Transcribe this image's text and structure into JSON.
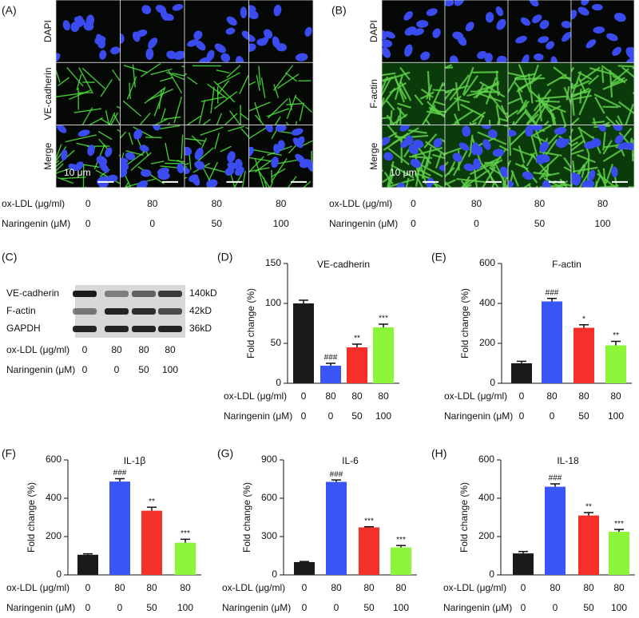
{
  "panels": {
    "A": {
      "label": "(A)",
      "rows": [
        "DAPI",
        "VE-cadherin",
        "Merge"
      ],
      "scale_bar": "10 μm",
      "conditions": [
        {
          "label": "ox-LDL (μg/ml)",
          "values": [
            0,
            80,
            80,
            80
          ]
        },
        {
          "label": "Naringenin (μM)",
          "values": [
            0,
            0,
            50,
            100
          ]
        }
      ]
    },
    "B": {
      "label": "(B)",
      "rows": [
        "DAPI",
        "F-actin",
        "Merge"
      ],
      "scale_bar": "10 μm",
      "conditions": [
        {
          "label": "ox-LDL (μg/ml)",
          "values": [
            0,
            80,
            80,
            80
          ]
        },
        {
          "label": "Naringenin (μM)",
          "values": [
            0,
            0,
            50,
            100
          ]
        }
      ]
    },
    "C": {
      "label": "(C)",
      "bands": [
        {
          "name": "VE-cadherin",
          "size": "140kD"
        },
        {
          "name": "F-actin",
          "size": "42kD"
        },
        {
          "name": "GAPDH",
          "size": "36kD"
        }
      ],
      "conditions": [
        {
          "label": "ox-LDL (μg/ml)",
          "values": [
            0,
            80,
            80,
            80
          ]
        },
        {
          "label": "Naringenin (μM)",
          "values": [
            0,
            0,
            50,
            100
          ]
        }
      ]
    }
  },
  "chart_data": [
    {
      "type": "bar",
      "panel_label": "(D)",
      "title": "VE-cadherin",
      "y_label": "Fold change (%)",
      "ylim": [
        0,
        150
      ],
      "yticks": [
        0,
        50,
        100,
        150
      ],
      "values": [
        100,
        22,
        45,
        70
      ],
      "errors": [
        4,
        3,
        4,
        4
      ],
      "colors": [
        "#1a1a1a",
        "#3a55f5",
        "#f5302a",
        "#8cf53a"
      ],
      "annotations": [
        null,
        "###",
        "**",
        "***"
      ],
      "conditions": [
        {
          "label": "ox-LDL (μg/ml)",
          "values": [
            0,
            80,
            80,
            80
          ]
        },
        {
          "label": "Naringenin (μM)",
          "values": [
            0,
            0,
            50,
            100
          ]
        }
      ]
    },
    {
      "type": "bar",
      "panel_label": "(E)",
      "title": "F-actin",
      "y_label": "Fold change (%)",
      "ylim": [
        0,
        600
      ],
      "yticks": [
        0,
        200,
        400,
        600
      ],
      "values": [
        100,
        410,
        278,
        190
      ],
      "errors": [
        10,
        15,
        15,
        20
      ],
      "colors": [
        "#1a1a1a",
        "#3a55f5",
        "#f5302a",
        "#8cf53a"
      ],
      "annotations": [
        null,
        "###",
        "*",
        "**"
      ],
      "conditions": [
        {
          "label": "ox-LDL (μg/ml)",
          "values": [
            0,
            80,
            80,
            80
          ]
        },
        {
          "label": "Naringenin (μM)",
          "values": [
            0,
            0,
            50,
            100
          ]
        }
      ]
    },
    {
      "type": "bar",
      "panel_label": "(F)",
      "title": "IL-1β",
      "y_label": "Fold change (%)",
      "ylim": [
        0,
        600
      ],
      "yticks": [
        0,
        200,
        400,
        600
      ],
      "values": [
        105,
        487,
        335,
        168
      ],
      "errors": [
        5,
        15,
        18,
        18
      ],
      "colors": [
        "#1a1a1a",
        "#3a55f5",
        "#f5302a",
        "#8cf53a"
      ],
      "annotations": [
        null,
        "###",
        "**",
        "***"
      ],
      "conditions": [
        {
          "label": "ox-LDL (μg/ml)",
          "values": [
            0,
            80,
            80,
            80
          ]
        },
        {
          "label": "Naringenin (μM)",
          "values": [
            0,
            0,
            50,
            100
          ]
        }
      ]
    },
    {
      "type": "bar",
      "panel_label": "(G)",
      "title": "IL-6",
      "y_label": "Fold change (%)",
      "ylim": [
        0,
        900
      ],
      "yticks": [
        0,
        300,
        600,
        900
      ],
      "values": [
        100,
        728,
        372,
        215
      ],
      "errors": [
        5,
        15,
        5,
        15
      ],
      "colors": [
        "#1a1a1a",
        "#3a55f5",
        "#f5302a",
        "#8cf53a"
      ],
      "annotations": [
        null,
        "###",
        "***",
        "***"
      ],
      "conditions": [
        {
          "label": "ox-LDL (μg/ml)",
          "values": [
            0,
            80,
            80,
            80
          ]
        },
        {
          "label": "Naringenin (μM)",
          "values": [
            0,
            0,
            50,
            100
          ]
        }
      ]
    },
    {
      "type": "bar",
      "panel_label": "(H)",
      "title": "IL-18",
      "y_label": "Fold change (%)",
      "ylim": [
        0,
        600
      ],
      "yticks": [
        0,
        200,
        400,
        600
      ],
      "values": [
        112,
        460,
        310,
        225
      ],
      "errors": [
        10,
        15,
        15,
        12
      ],
      "colors": [
        "#1a1a1a",
        "#3a55f5",
        "#f5302a",
        "#8cf53a"
      ],
      "annotations": [
        null,
        "###",
        "**",
        "***"
      ],
      "conditions": [
        {
          "label": "ox-LDL (μg/ml)",
          "values": [
            0,
            80,
            80,
            80
          ]
        },
        {
          "label": "Naringenin (μM)",
          "values": [
            0,
            0,
            50,
            100
          ]
        }
      ]
    }
  ]
}
